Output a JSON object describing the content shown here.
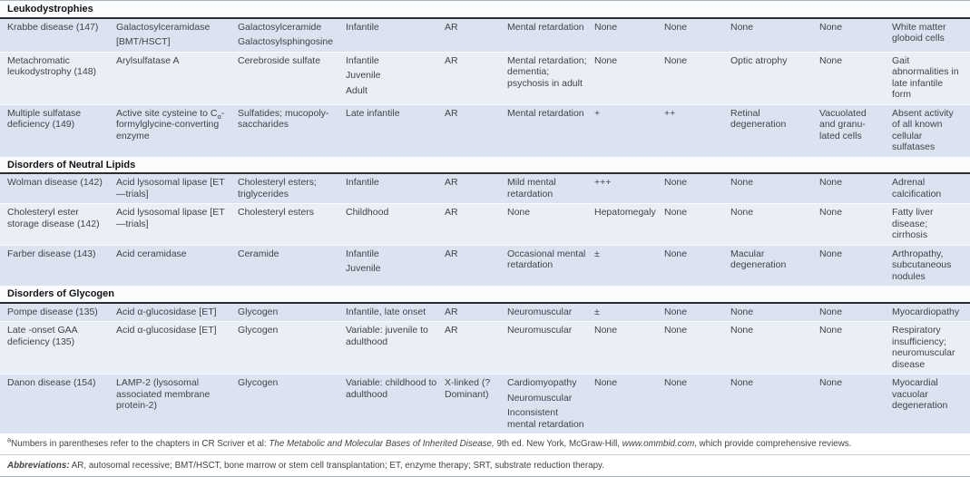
{
  "colors": {
    "row_shade_dark": "#dce3f0",
    "row_shade_light": "#e9eef7",
    "section_header_bg": "#fafcfe",
    "body_text": "#3f4449",
    "section_rule": "#2a2c2e"
  },
  "table": {
    "sections": [
      {
        "title": "Leukodystrophies",
        "rows": [
          {
            "cells": [
              [
                "Krabbe disease (147)"
              ],
              [
                "Galactosylceramidase",
                "[BMT/HSCT]"
              ],
              [
                "Galactosylceramide",
                "Galactosylsphingosine"
              ],
              [
                "Infantile"
              ],
              [
                "AR"
              ],
              [
                "Mental retardation"
              ],
              [
                "None"
              ],
              [
                "None"
              ],
              [
                "None"
              ],
              [
                "None"
              ],
              [
                "White matter globoid cells"
              ]
            ]
          },
          {
            "cells": [
              [
                "Metachromatic leukodystrophy (148)"
              ],
              [
                "Arylsulfatase A"
              ],
              [
                "Cerebroside sulfate"
              ],
              [
                "Infantile",
                "Juvenile",
                "Adult"
              ],
              [
                "AR"
              ],
              [
                "Mental retardation; dementia; psychosis in adult"
              ],
              [
                "None"
              ],
              [
                "None"
              ],
              [
                "Optic atrophy"
              ],
              [
                "None"
              ],
              [
                "Gait abnormalities in late infantile form"
              ]
            ]
          },
          {
            "cells": [
              [
                "Multiple sulfatase deficiency (149)"
              ],
              [
                "Active site cysteine to C_α_-formylglycine-converting enzyme"
              ],
              [
                "Sulfatides; mucopoly-saccharides"
              ],
              [
                "Late infantile"
              ],
              [
                "AR"
              ],
              [
                "Mental retardation"
              ],
              [
                "+"
              ],
              [
                "++"
              ],
              [
                "Retinal degeneration"
              ],
              [
                "Vacuolated and granu-lated cells"
              ],
              [
                "Absent activity of all known cellular sulfatases"
              ]
            ]
          }
        ]
      },
      {
        "title": "Disorders of Neutral Lipids",
        "rows": [
          {
            "cells": [
              [
                "Wolman disease (142)"
              ],
              [
                "Acid lysosomal lipase [ET—trials]"
              ],
              [
                "Cholesteryl esters; triglycerides"
              ],
              [
                "Infantile"
              ],
              [
                "AR"
              ],
              [
                "Mild mental retardation"
              ],
              [
                "+++"
              ],
              [
                "None"
              ],
              [
                "None"
              ],
              [
                "None"
              ],
              [
                "Adrenal calcification"
              ]
            ]
          },
          {
            "cells": [
              [
                "Cholesteryl ester storage disease (142)"
              ],
              [
                "Acid lysosomal lipase [ET—trials]"
              ],
              [
                "Cholesteryl esters"
              ],
              [
                "Childhood"
              ],
              [
                "AR"
              ],
              [
                "None"
              ],
              [
                "Hepatomegaly"
              ],
              [
                "None"
              ],
              [
                "None"
              ],
              [
                "None"
              ],
              [
                "Fatty liver disease; cirrhosis"
              ]
            ]
          },
          {
            "cells": [
              [
                "Farber disease (143)"
              ],
              [
                "Acid ceramidase"
              ],
              [
                "Ceramide"
              ],
              [
                "Infantile",
                "Juvenile"
              ],
              [
                "AR"
              ],
              [
                "Occasional mental retardation"
              ],
              [
                "±"
              ],
              [
                "None"
              ],
              [
                "Macular degeneration"
              ],
              [
                "None"
              ],
              [
                "Arthropathy, subcutaneous nodules"
              ]
            ]
          }
        ]
      },
      {
        "title": "Disorders of Glycogen",
        "rows": [
          {
            "cells": [
              [
                "Pompe disease (135)"
              ],
              [
                "Acid α-glucosidase [ET]"
              ],
              [
                "Glycogen"
              ],
              [
                "Infantile, late onset"
              ],
              [
                "AR"
              ],
              [
                "Neuromuscular"
              ],
              [
                "±"
              ],
              [
                "None"
              ],
              [
                "None"
              ],
              [
                "None"
              ],
              [
                "Myocardiopathy"
              ]
            ]
          },
          {
            "cells": [
              [
                "Late -onset GAA deficiency (135)"
              ],
              [
                "Acid α-glucosidase [ET]"
              ],
              [
                "Glycogen"
              ],
              [
                "Variable: juvenile to adulthood"
              ],
              [
                "AR"
              ],
              [
                "Neuromuscular"
              ],
              [
                "None"
              ],
              [
                "None"
              ],
              [
                "None"
              ],
              [
                "None"
              ],
              [
                "Respiratory insufficiency; neuromuscular disease"
              ]
            ]
          },
          {
            "cells": [
              [
                "Danon disease (154)"
              ],
              [
                "LAMP-2 (lysosomal associated membrane protein-2)"
              ],
              [
                "Glycogen"
              ],
              [
                "Variable: childhood to adulthood"
              ],
              [
                "X-linked (?Dominant)"
              ],
              [
                "Cardiomyopathy",
                "Neuromuscular",
                "Inconsistent mental retardation"
              ],
              [
                "None"
              ],
              [
                "None"
              ],
              [
                "None"
              ],
              [
                "None"
              ],
              [
                "Myocardial vacuolar degeneration"
              ]
            ]
          }
        ]
      }
    ]
  },
  "footnotes": {
    "chapters": "^a^Numbers in parentheses refer to the chapters in CR Scriver et al: *The Metabolic and Molecular Bases of Inherited Disease,* 9th ed. New York, McGraw-Hill, *www.ommbid.com*, which provide comprehensive reviews.",
    "abbreviations": "**Abbreviations:** AR, autosomal recessive; BMT/HSCT, bone marrow or stem cell transplantation; ET, enzyme therapy; SRT, substrate reduction therapy."
  }
}
